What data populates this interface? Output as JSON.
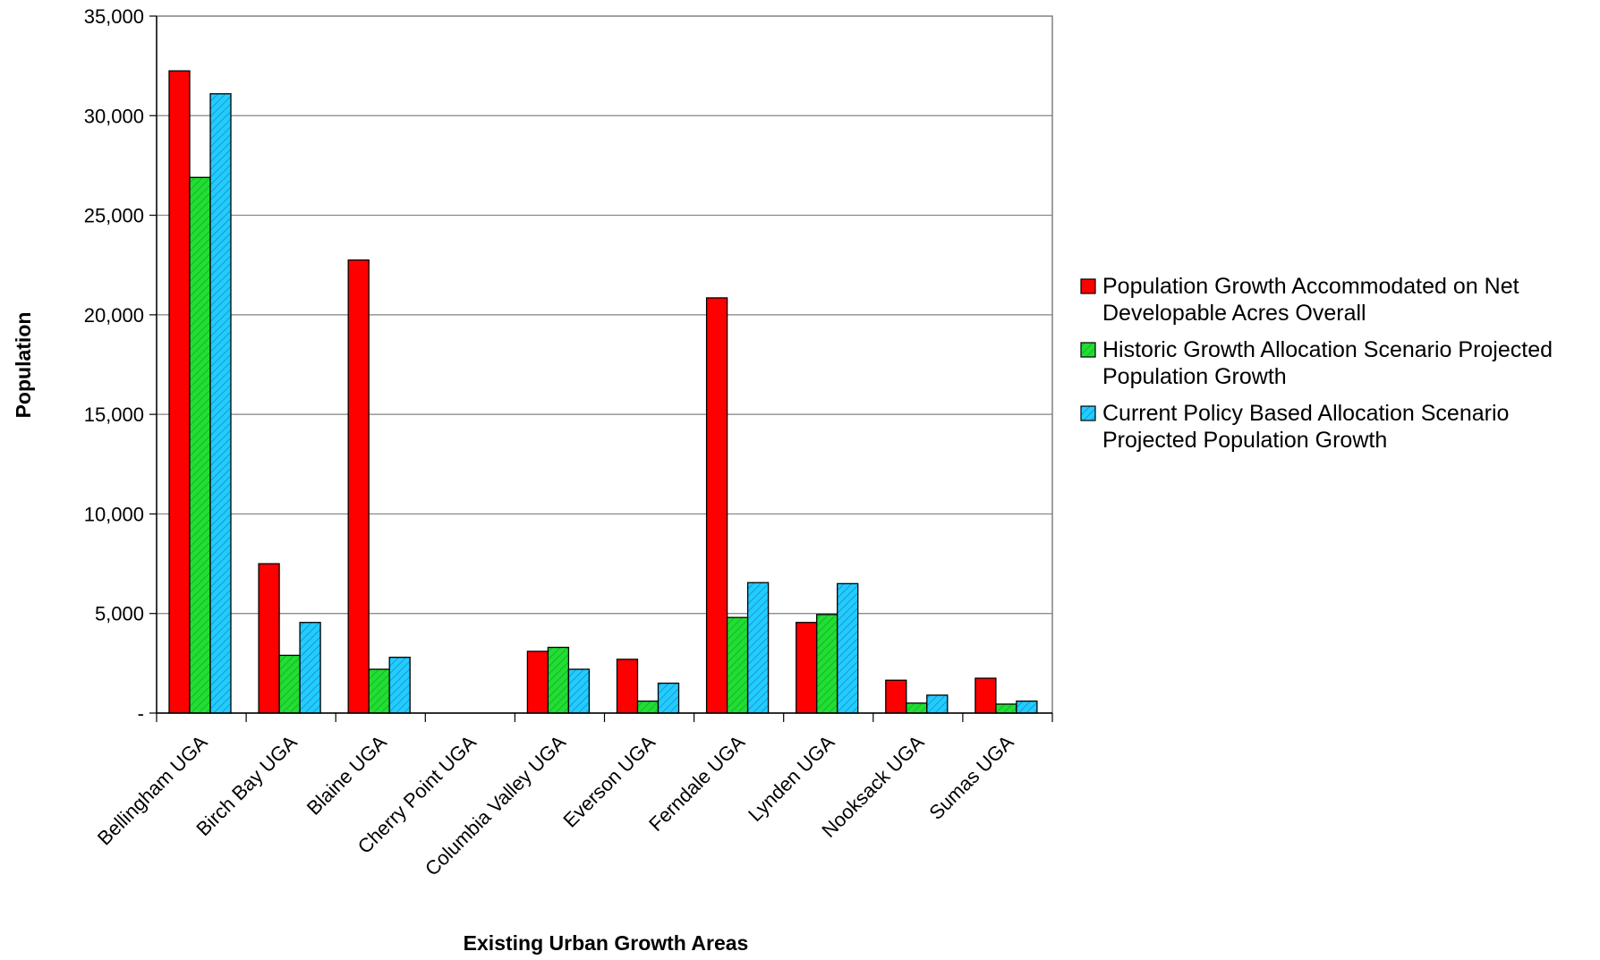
{
  "chart_data": {
    "type": "bar",
    "title": "",
    "xlabel": "Existing Urban Growth Areas",
    "ylabel": "Population",
    "ylim": [
      0,
      35000
    ],
    "y_ticks": [
      0,
      5000,
      10000,
      15000,
      20000,
      25000,
      30000,
      35000
    ],
    "y_tick_labels": [
      "-",
      "5,000",
      "10,000",
      "15,000",
      "20,000",
      "25,000",
      "30,000",
      "35,000"
    ],
    "grid": true,
    "legend_position": "right",
    "categories": [
      "Bellingham UGA",
      "Birch Bay UGA",
      "Blaine UGA",
      "Cherry Point UGA",
      "Columbia Valley UGA",
      "Everson UGA",
      "Ferndale UGA",
      "Lynden UGA",
      "Nooksack UGA",
      "Sumas UGA"
    ],
    "series": [
      {
        "name": "Population Growth Accommodated on Net Developable Acres Overall",
        "legend_lines": [
          "Population Growth Accommodated on Net",
          "Developable Acres Overall"
        ],
        "color": "#ff0000",
        "pattern": "solid",
        "values": [
          32250,
          7500,
          22750,
          0,
          3100,
          2700,
          20850,
          4550,
          1650,
          1750
        ]
      },
      {
        "name": "Historic Growth Allocation Scenario Projected Population Growth",
        "legend_lines": [
          "Historic Growth Allocation Scenario Projected",
          "Population Growth"
        ],
        "color": "#22dd33",
        "pattern": "hatch",
        "values": [
          26900,
          2900,
          2200,
          0,
          3300,
          600,
          4800,
          4950,
          500,
          450
        ]
      },
      {
        "name": "Current Policy Based Allocation Scenario Projected Population Growth",
        "legend_lines": [
          "Current Policy Based Allocation Scenario",
          "Projected Population Growth"
        ],
        "color": "#22ccff",
        "pattern": "hatch",
        "values": [
          31100,
          4550,
          2800,
          0,
          2200,
          1500,
          6550,
          6500,
          900,
          600
        ]
      }
    ]
  }
}
